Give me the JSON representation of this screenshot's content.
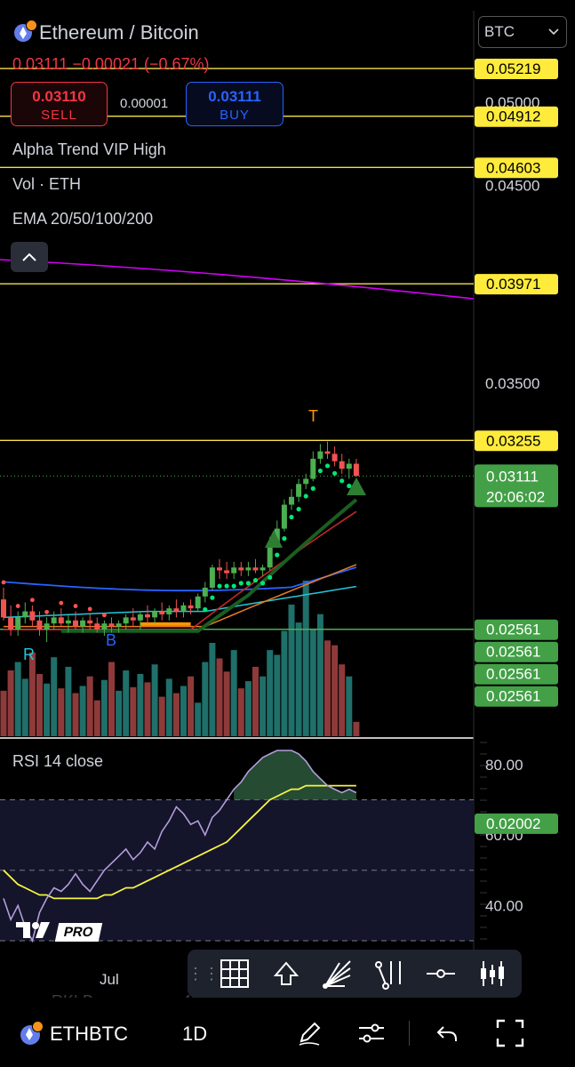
{
  "header": {
    "title": "Ethereum / Bitcoin",
    "quote": "0.03111 −0.00021 (−0.67%)",
    "sell_price": "0.03110",
    "sell_label": "SELL",
    "spread": "0.00001",
    "buy_price": "0.03111",
    "buy_label": "BUY",
    "currency_select": "BTC"
  },
  "indicators": [
    "Alpha Trend VIP High",
    "Vol · ETH",
    "EMA 20/50/100/200"
  ],
  "icons": {
    "collapse": "chevron-up-icon",
    "select": "chevron-down-icon",
    "logo": "tradingview-pro-logo"
  },
  "colors": {
    "up": "#26a69a",
    "up_candle": "#4caf50",
    "down": "#ef5350",
    "level_line": "#f5e04a",
    "support_line": "#4caf50",
    "ema20": "#c62828",
    "ema50": "#e67e22",
    "ema100": "#26c6da",
    "ema200": "#2962ff",
    "trend": "#1b5e20",
    "magenta": "#d500f9",
    "rsi": "#b39ddb",
    "rsi_ma": "#f5f542"
  },
  "chart_data": [
    {
      "type": "candlestick",
      "symbol": "ETHBTC",
      "interval": "1D",
      "title": "Ethereum / Bitcoin",
      "price_axis_labels": [
        "0.05000",
        "0.04500",
        "0.03500"
      ],
      "current_price": "0.03111",
      "countdown": "20:06:02",
      "horizontal_levels": [
        {
          "value": "0.05219",
          "color": "yellow"
        },
        {
          "value": "0.04912",
          "color": "yellow"
        },
        {
          "value": "0.04603",
          "color": "yellow"
        },
        {
          "value": "0.03971",
          "color": "yellow"
        },
        {
          "value": "0.03255",
          "color": "yellow"
        },
        {
          "value": "0.02561",
          "color": "green"
        },
        {
          "value": "0.02561",
          "color": "green"
        },
        {
          "value": "0.02561",
          "color": "green"
        },
        {
          "value": "0.02561",
          "color": "green"
        },
        {
          "value": "0.02002",
          "color": "green"
        }
      ],
      "markers": [
        "R",
        "B",
        "T"
      ],
      "x_tick_labels": [
        "Jul"
      ],
      "candles": [
        [
          0.0266,
          0.027,
          0.0259,
          0.026
        ],
        [
          0.026,
          0.0264,
          0.0254,
          0.0256
        ],
        [
          0.0256,
          0.0262,
          0.0254,
          0.026
        ],
        [
          0.026,
          0.0265,
          0.0258,
          0.0262
        ],
        [
          0.0262,
          0.0264,
          0.0257,
          0.0259
        ],
        [
          0.0259,
          0.0262,
          0.0254,
          0.0256
        ],
        [
          0.0256,
          0.026,
          0.0252,
          0.0258
        ],
        [
          0.0258,
          0.0262,
          0.0256,
          0.026
        ],
        [
          0.026,
          0.0263,
          0.0257,
          0.0258
        ],
        [
          0.0258,
          0.0261,
          0.0255,
          0.0259
        ],
        [
          0.0259,
          0.0262,
          0.0256,
          0.0257
        ],
        [
          0.0257,
          0.026,
          0.0255,
          0.0259
        ],
        [
          0.0259,
          0.0261,
          0.0256,
          0.0258
        ],
        [
          0.0258,
          0.026,
          0.0255,
          0.0256
        ],
        [
          0.0256,
          0.0259,
          0.0254,
          0.0258
        ],
        [
          0.0258,
          0.026,
          0.0255,
          0.0257
        ],
        [
          0.0257,
          0.0259,
          0.0255,
          0.0258
        ],
        [
          0.0258,
          0.0261,
          0.0256,
          0.026
        ],
        [
          0.026,
          0.0263,
          0.0257,
          0.0259
        ],
        [
          0.0259,
          0.0262,
          0.0256,
          0.0261
        ],
        [
          0.0261,
          0.0264,
          0.0258,
          0.026
        ],
        [
          0.026,
          0.0263,
          0.0258,
          0.0262
        ],
        [
          0.0262,
          0.0265,
          0.0259,
          0.0261
        ],
        [
          0.0261,
          0.0264,
          0.0259,
          0.0263
        ],
        [
          0.0263,
          0.0266,
          0.026,
          0.0262
        ],
        [
          0.0262,
          0.0265,
          0.026,
          0.0264
        ],
        [
          0.0264,
          0.0266,
          0.0261,
          0.0263
        ],
        [
          0.0263,
          0.0268,
          0.0262,
          0.0267
        ],
        [
          0.0267,
          0.0272,
          0.0265,
          0.027
        ],
        [
          0.027,
          0.0278,
          0.0269,
          0.0277
        ],
        [
          0.0277,
          0.028,
          0.0273,
          0.0276
        ],
        [
          0.0276,
          0.0279,
          0.0273,
          0.0275
        ],
        [
          0.0275,
          0.0279,
          0.0273,
          0.0277
        ],
        [
          0.0277,
          0.0279,
          0.0274,
          0.0276
        ],
        [
          0.0276,
          0.0279,
          0.0274,
          0.0277
        ],
        [
          0.0277,
          0.028,
          0.0275,
          0.0276
        ],
        [
          0.0276,
          0.0278,
          0.0274,
          0.0277
        ],
        [
          0.0277,
          0.0288,
          0.0276,
          0.0286
        ],
        [
          0.0286,
          0.0294,
          0.0284,
          0.0291
        ],
        [
          0.0291,
          0.0302,
          0.029,
          0.03
        ],
        [
          0.03,
          0.0306,
          0.0298,
          0.0303
        ],
        [
          0.0303,
          0.031,
          0.0301,
          0.0308
        ],
        [
          0.0308,
          0.0312,
          0.0306,
          0.031
        ],
        [
          0.031,
          0.0321,
          0.0309,
          0.0318
        ],
        [
          0.0318,
          0.0324,
          0.0316,
          0.0321
        ],
        [
          0.0321,
          0.0325,
          0.0318,
          0.032
        ],
        [
          0.032,
          0.0323,
          0.0315,
          0.0317
        ],
        [
          0.0317,
          0.032,
          0.0312,
          0.0314
        ],
        [
          0.0314,
          0.0318,
          0.031,
          0.0316
        ],
        [
          0.0316,
          0.0318,
          0.0311,
          0.03111
        ]
      ],
      "volume": [
        38,
        55,
        62,
        48,
        70,
        52,
        44,
        66,
        40,
        58,
        36,
        42,
        50,
        30,
        47,
        62,
        38,
        55,
        41,
        52,
        45,
        60,
        33,
        48,
        36,
        42,
        50,
        28,
        62,
        78,
        65,
        54,
        72,
        40,
        46,
        58,
        50,
        72,
        68,
        88,
        110,
        95,
        130,
        90,
        102,
        80,
        76,
        60,
        50,
        12
      ]
    },
    {
      "type": "line",
      "title": "RSI 14 close",
      "y_axis_labels": [
        "80.00",
        "60.00",
        "40.00"
      ],
      "ylim": [
        30,
        85
      ],
      "bands": [
        70,
        50,
        30
      ],
      "series": [
        {
          "values": [
            42,
            36,
            40,
            34,
            30,
            38,
            42,
            45,
            44,
            46,
            49,
            46,
            44,
            47,
            50,
            52,
            54,
            56,
            53,
            55,
            58,
            56,
            61,
            64,
            68,
            66,
            63,
            64,
            60,
            65,
            67,
            70,
            73,
            75,
            78,
            80,
            82,
            83,
            84,
            84,
            84,
            83,
            81,
            78,
            76,
            74,
            73,
            72,
            73,
            72
          ]
        },
        {
          "values": [
            50,
            48,
            46,
            45,
            44,
            43,
            43,
            42,
            42,
            42,
            42,
            42,
            42,
            42,
            43,
            43,
            44,
            45,
            45,
            46,
            47,
            48,
            49,
            50,
            51,
            52,
            53,
            54,
            55,
            56,
            57,
            58,
            60,
            62,
            64,
            66,
            68,
            70,
            71,
            72,
            73,
            73,
            74,
            74,
            74,
            74,
            74,
            74,
            74,
            74
          ]
        }
      ]
    }
  ],
  "footer": {
    "x_label": "Jul",
    "symbol": "ETHBTC",
    "interval": "1D"
  }
}
